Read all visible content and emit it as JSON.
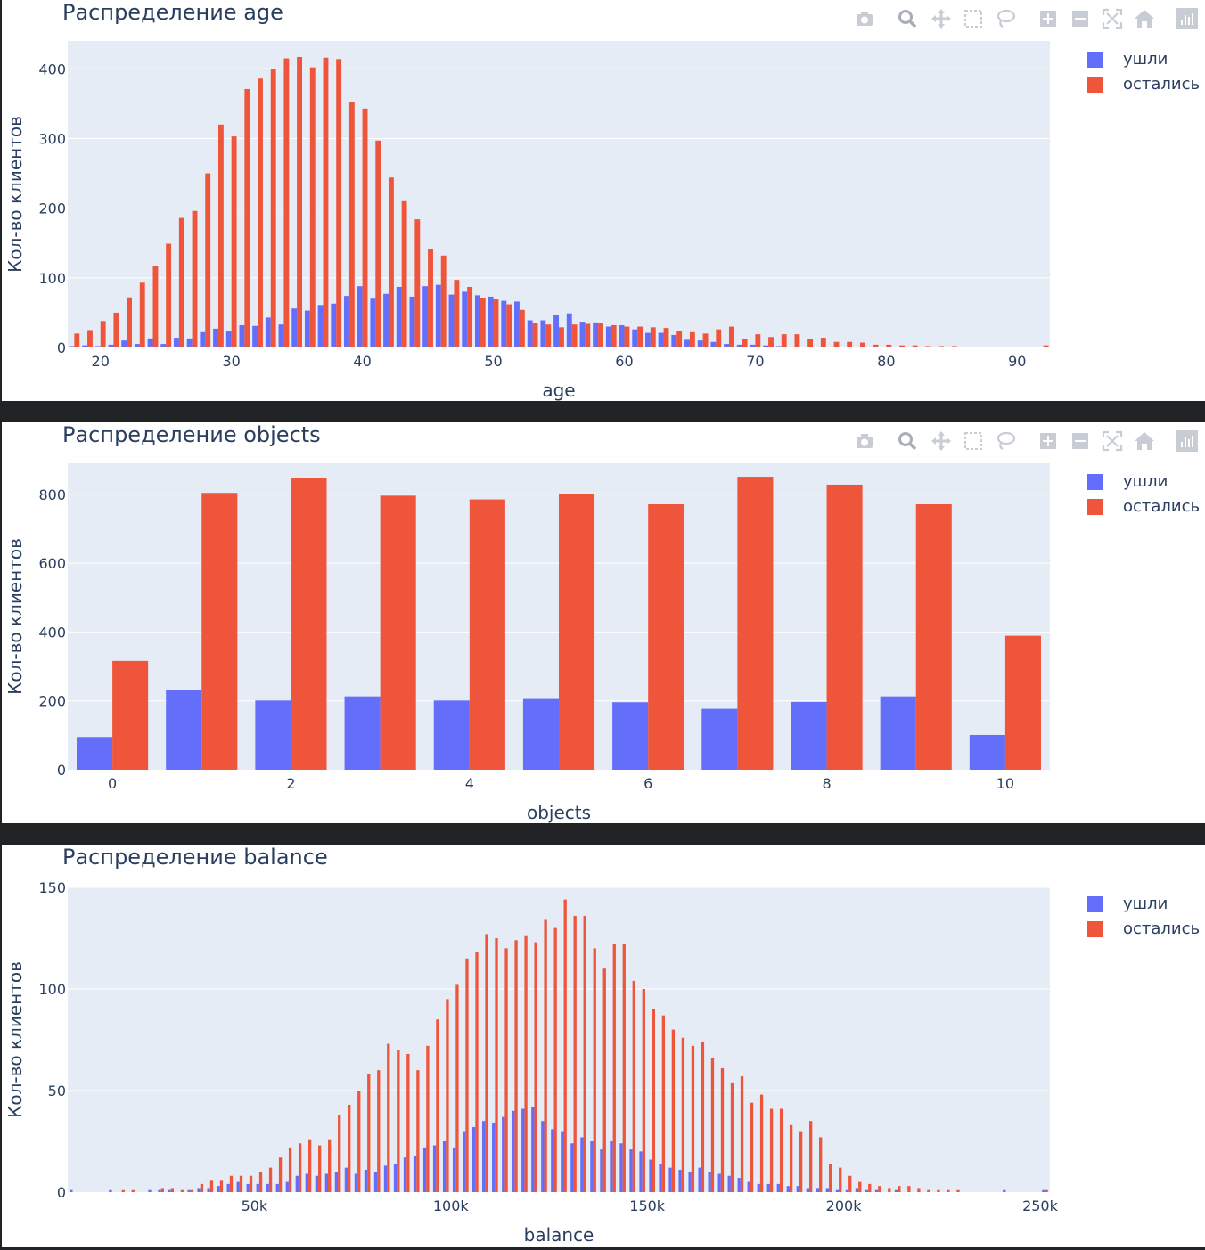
{
  "colors": {
    "left": "#636efa",
    "stayed": "#ef553b",
    "plot_bg": "#e5ecf6",
    "grid": "#ffffff",
    "text": "#2a3f5f"
  },
  "modebar_icons": [
    "camera-icon",
    "zoom-icon",
    "pan-icon",
    "box-select-icon",
    "lasso-icon",
    "zoom-in-icon",
    "zoom-out-icon",
    "autoscale-icon",
    "home-icon",
    "plotly-logo-icon"
  ],
  "chart_data": [
    {
      "type": "bar",
      "title": "Распределение age",
      "xlabel": "age",
      "ylabel": "Кол-во клиентов",
      "xlim": [
        17.5,
        92.5
      ],
      "ylim": [
        0,
        440
      ],
      "xticks": [
        20,
        30,
        40,
        50,
        60,
        70,
        80,
        90
      ],
      "yticks": [
        0,
        100,
        200,
        300,
        400
      ],
      "x": [
        18,
        19,
        20,
        21,
        22,
        23,
        24,
        25,
        26,
        27,
        28,
        29,
        30,
        31,
        32,
        33,
        34,
        35,
        36,
        37,
        38,
        39,
        40,
        41,
        42,
        43,
        44,
        45,
        46,
        47,
        48,
        49,
        50,
        51,
        52,
        53,
        54,
        55,
        56,
        57,
        58,
        59,
        60,
        61,
        62,
        63,
        64,
        65,
        66,
        67,
        68,
        69,
        70,
        71,
        72,
        73,
        74,
        75,
        76,
        77,
        78,
        79,
        80,
        81,
        82,
        83,
        84,
        85,
        86,
        87,
        88,
        89,
        90,
        91,
        92
      ],
      "series": [
        {
          "name": "ушли",
          "values": [
            2,
            3,
            2,
            4,
            10,
            5,
            13,
            5,
            14,
            13,
            22,
            27,
            23,
            32,
            31,
            43,
            33,
            56,
            53,
            61,
            63,
            74,
            88,
            70,
            77,
            87,
            73,
            88,
            90,
            76,
            80,
            75,
            73,
            67,
            66,
            39,
            39,
            47,
            49,
            37,
            36,
            30,
            32,
            26,
            21,
            21,
            18,
            11,
            10,
            8,
            5,
            4,
            4,
            3,
            2,
            1,
            1,
            1,
            1,
            0,
            0,
            0,
            0,
            0,
            0,
            0,
            0,
            0,
            0,
            0,
            0,
            0,
            0,
            0,
            0
          ]
        },
        {
          "name": "остались",
          "values": [
            20,
            25,
            38,
            50,
            72,
            93,
            117,
            149,
            186,
            196,
            250,
            320,
            303,
            371,
            386,
            399,
            415,
            417,
            402,
            416,
            414,
            352,
            343,
            297,
            244,
            210,
            184,
            142,
            132,
            97,
            87,
            71,
            69,
            62,
            54,
            35,
            33,
            29,
            33,
            34,
            35,
            32,
            30,
            30,
            29,
            28,
            24,
            22,
            20,
            26,
            30,
            12,
            19,
            15,
            19,
            19,
            12,
            14,
            8,
            8,
            7,
            4,
            4,
            3,
            3,
            2,
            2,
            2,
            1,
            1,
            1,
            1,
            1,
            1,
            3
          ]
        }
      ]
    },
    {
      "type": "bar",
      "title": "Распределение objects",
      "xlabel": "objects",
      "ylabel": "Кол-во клиентов",
      "xlim": [
        -0.5,
        10.5
      ],
      "ylim": [
        0,
        890
      ],
      "xticks": [
        0,
        2,
        4,
        6,
        8,
        10
      ],
      "yticks": [
        0,
        200,
        400,
        600,
        800
      ],
      "x": [
        0,
        1,
        2,
        3,
        4,
        5,
        6,
        7,
        8,
        9,
        10
      ],
      "series": [
        {
          "name": "ушли",
          "values": [
            95,
            232,
            201,
            213,
            201,
            208,
            196,
            177,
            197,
            213,
            101
          ]
        },
        {
          "name": "остались",
          "values": [
            316,
            804,
            847,
            796,
            785,
            802,
            771,
            851,
            828,
            771,
            389
          ]
        }
      ]
    },
    {
      "type": "bar",
      "title": "Распределение balance",
      "xlabel": "balance",
      "ylabel": "Кол-во клиентов",
      "xlim": [
        2500,
        252500
      ],
      "ylim": [
        0,
        150
      ],
      "xticks": [
        50000,
        100000,
        150000,
        200000,
        250000
      ],
      "xtick_labels": [
        "50k",
        "100k",
        "150k",
        "200k",
        "250k"
      ],
      "yticks": [
        0,
        50,
        100,
        150
      ],
      "x": [
        3750,
        6250,
        8750,
        11250,
        13750,
        16250,
        18750,
        21250,
        23750,
        26250,
        28750,
        31250,
        33750,
        36250,
        38750,
        41250,
        43750,
        46250,
        48750,
        51250,
        53750,
        56250,
        58750,
        61250,
        63750,
        66250,
        68750,
        71250,
        73750,
        76250,
        78750,
        81250,
        83750,
        86250,
        88750,
        91250,
        93750,
        96250,
        98750,
        101250,
        103750,
        106250,
        108750,
        111250,
        113750,
        116250,
        118750,
        121250,
        123750,
        126250,
        128750,
        131250,
        133750,
        136250,
        138750,
        141250,
        143750,
        146250,
        148750,
        151250,
        153750,
        156250,
        158750,
        161250,
        163750,
        166250,
        168750,
        171250,
        173750,
        176250,
        178750,
        181250,
        183750,
        186250,
        188750,
        191250,
        193750,
        196250,
        198750,
        201250,
        203750,
        206250,
        208750,
        211250,
        213750,
        216250,
        218750,
        221250,
        223750,
        226250,
        228750,
        231250,
        233750,
        236250,
        238750,
        241250,
        243750,
        246250,
        248750,
        251250
      ],
      "series": [
        {
          "name": "ушли",
          "values": [
            1,
            0,
            0,
            0,
            1,
            0,
            0,
            0,
            1,
            1,
            1,
            0,
            1,
            2,
            2,
            3,
            4,
            5,
            4,
            4,
            4,
            4,
            5,
            8,
            9,
            8,
            9,
            10,
            12,
            9,
            11,
            10,
            13,
            14,
            17,
            18,
            22,
            23,
            25,
            22,
            30,
            32,
            35,
            34,
            37,
            40,
            41,
            42,
            35,
            31,
            30,
            24,
            27,
            25,
            21,
            25,
            24,
            21,
            20,
            16,
            14,
            12,
            11,
            10,
            12,
            10,
            9,
            8,
            7,
            5,
            4,
            4,
            4,
            3,
            3,
            2,
            2,
            2,
            1,
            1,
            2,
            1,
            1,
            0,
            1,
            0,
            0,
            0,
            0,
            0,
            0,
            0,
            0,
            0,
            0,
            1,
            0,
            0,
            0,
            1
          ]
        },
        {
          "name": "остались",
          "values": [
            0,
            0,
            0,
            0,
            0,
            1,
            1,
            0,
            0,
            2,
            2,
            1,
            1,
            4,
            6,
            6,
            8,
            8,
            8,
            10,
            12,
            17,
            22,
            24,
            26,
            23,
            26,
            38,
            43,
            50,
            58,
            60,
            73,
            70,
            68,
            60,
            72,
            85,
            95,
            102,
            115,
            118,
            127,
            125,
            120,
            124,
            126,
            123,
            134,
            130,
            144,
            136,
            136,
            120,
            110,
            122,
            122,
            104,
            100,
            90,
            87,
            80,
            76,
            72,
            74,
            66,
            61,
            54,
            57,
            44,
            48,
            41,
            41,
            33,
            30,
            35,
            27,
            14,
            12,
            8,
            5,
            4,
            3,
            2,
            3,
            3,
            2,
            1,
            1,
            1,
            1,
            0,
            0,
            0,
            0,
            0,
            0,
            0,
            0,
            1
          ]
        }
      ]
    }
  ]
}
